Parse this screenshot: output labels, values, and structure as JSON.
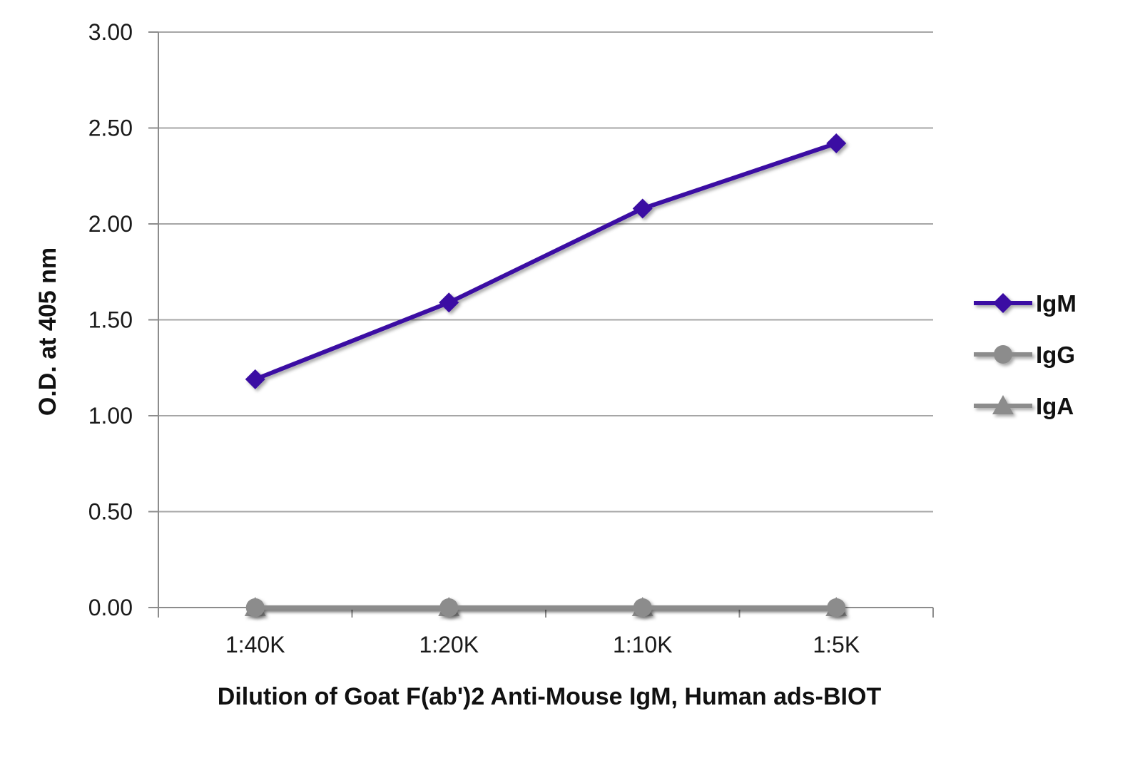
{
  "chart_data": {
    "type": "line",
    "title": "",
    "xlabel": "Dilution of Goat F(ab')2 Anti-Mouse IgM, Human ads-BIOT",
    "ylabel": "O.D. at 405 nm",
    "categories": [
      "1:40K",
      "1:20K",
      "1:10K",
      "1:5K"
    ],
    "ylim": [
      0,
      3.0
    ],
    "yticks": [
      "0.00",
      "0.50",
      "1.00",
      "1.50",
      "2.00",
      "2.50",
      "3.00"
    ],
    "grid": true,
    "legend_position": "right",
    "series": [
      {
        "name": "IgM",
        "values": [
          1.19,
          1.59,
          2.08,
          2.42
        ],
        "color": "#3a0ca3",
        "marker": "diamond"
      },
      {
        "name": "IgG",
        "values": [
          0.0,
          0.0,
          0.0,
          0.0
        ],
        "color": "#8c8c8c",
        "marker": "circle"
      },
      {
        "name": "IgA",
        "values": [
          0.0,
          0.0,
          0.0,
          0.0
        ],
        "color": "#8c8c8c",
        "marker": "triangle"
      }
    ]
  }
}
